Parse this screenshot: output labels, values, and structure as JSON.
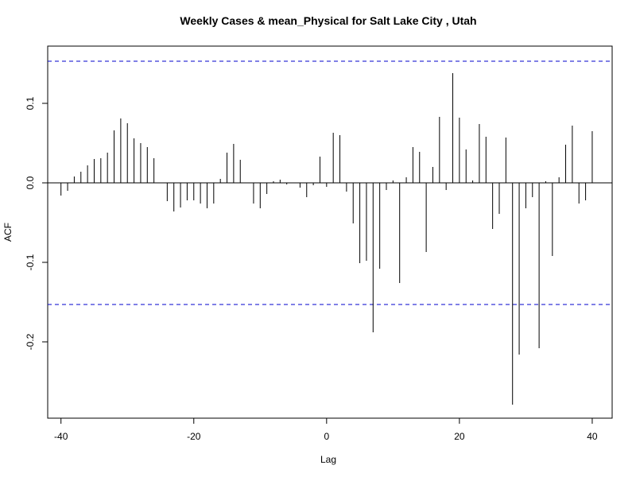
{
  "chart_data": {
    "type": "bar",
    "title": "Weekly Cases & mean_Physical for Salt Lake City , Utah",
    "xlabel": "Lag",
    "ylabel": "ACF",
    "xlim": [
      -42,
      43
    ],
    "ylim": [
      -0.296,
      0.172
    ],
    "x_ticks": [
      -40,
      -20,
      0,
      20,
      40
    ],
    "y_ticks": [
      -0.2,
      -0.1,
      0.0,
      0.1
    ],
    "y_tick_labels": [
      "-0.2",
      "-0.1",
      "0.0",
      "0.1"
    ],
    "confidence_limits": [
      0.153,
      -0.153
    ],
    "colors": {
      "bars": "#000000",
      "confidence": "#0000cc",
      "zero_line": "#000000"
    },
    "lags": [
      -40,
      -39,
      -38,
      -37,
      -36,
      -35,
      -34,
      -33,
      -32,
      -31,
      -30,
      -29,
      -28,
      -27,
      -26,
      -25,
      -24,
      -23,
      -22,
      -21,
      -20,
      -19,
      -18,
      -17,
      -16,
      -15,
      -14,
      -13,
      -12,
      -11,
      -10,
      -9,
      -8,
      -7,
      -6,
      -5,
      -4,
      -3,
      -2,
      -1,
      0,
      1,
      2,
      3,
      4,
      5,
      6,
      7,
      8,
      9,
      10,
      11,
      12,
      13,
      14,
      15,
      16,
      17,
      18,
      19,
      20,
      21,
      22,
      23,
      24,
      25,
      26,
      27,
      28,
      29,
      30,
      31,
      32,
      33,
      34,
      35,
      36,
      37,
      38,
      39,
      40
    ],
    "values": [
      -0.016,
      -0.01,
      0.008,
      0.014,
      0.022,
      0.03,
      0.031,
      0.038,
      0.066,
      0.081,
      0.075,
      0.056,
      0.05,
      0.045,
      0.031,
      0.0,
      -0.023,
      -0.036,
      -0.031,
      -0.022,
      -0.022,
      -0.026,
      -0.032,
      -0.026,
      0.005,
      0.038,
      0.049,
      0.029,
      0.0,
      -0.026,
      -0.032,
      -0.014,
      0.002,
      0.004,
      -0.002,
      0.0,
      -0.006,
      -0.018,
      -0.003,
      0.033,
      -0.005,
      0.063,
      0.06,
      -0.011,
      -0.051,
      -0.101,
      -0.098,
      -0.188,
      -0.108,
      -0.009,
      0.003,
      -0.126,
      0.007,
      0.045,
      0.039,
      -0.087,
      0.02,
      0.083,
      -0.009,
      0.138,
      0.082,
      0.042,
      0.003,
      0.074,
      0.058,
      -0.058,
      -0.039,
      0.057,
      -0.279,
      -0.216,
      -0.032,
      -0.018,
      -0.208,
      0.002,
      -0.092,
      0.007,
      0.048,
      0.072,
      -0.026,
      -0.022,
      0.065
    ]
  }
}
